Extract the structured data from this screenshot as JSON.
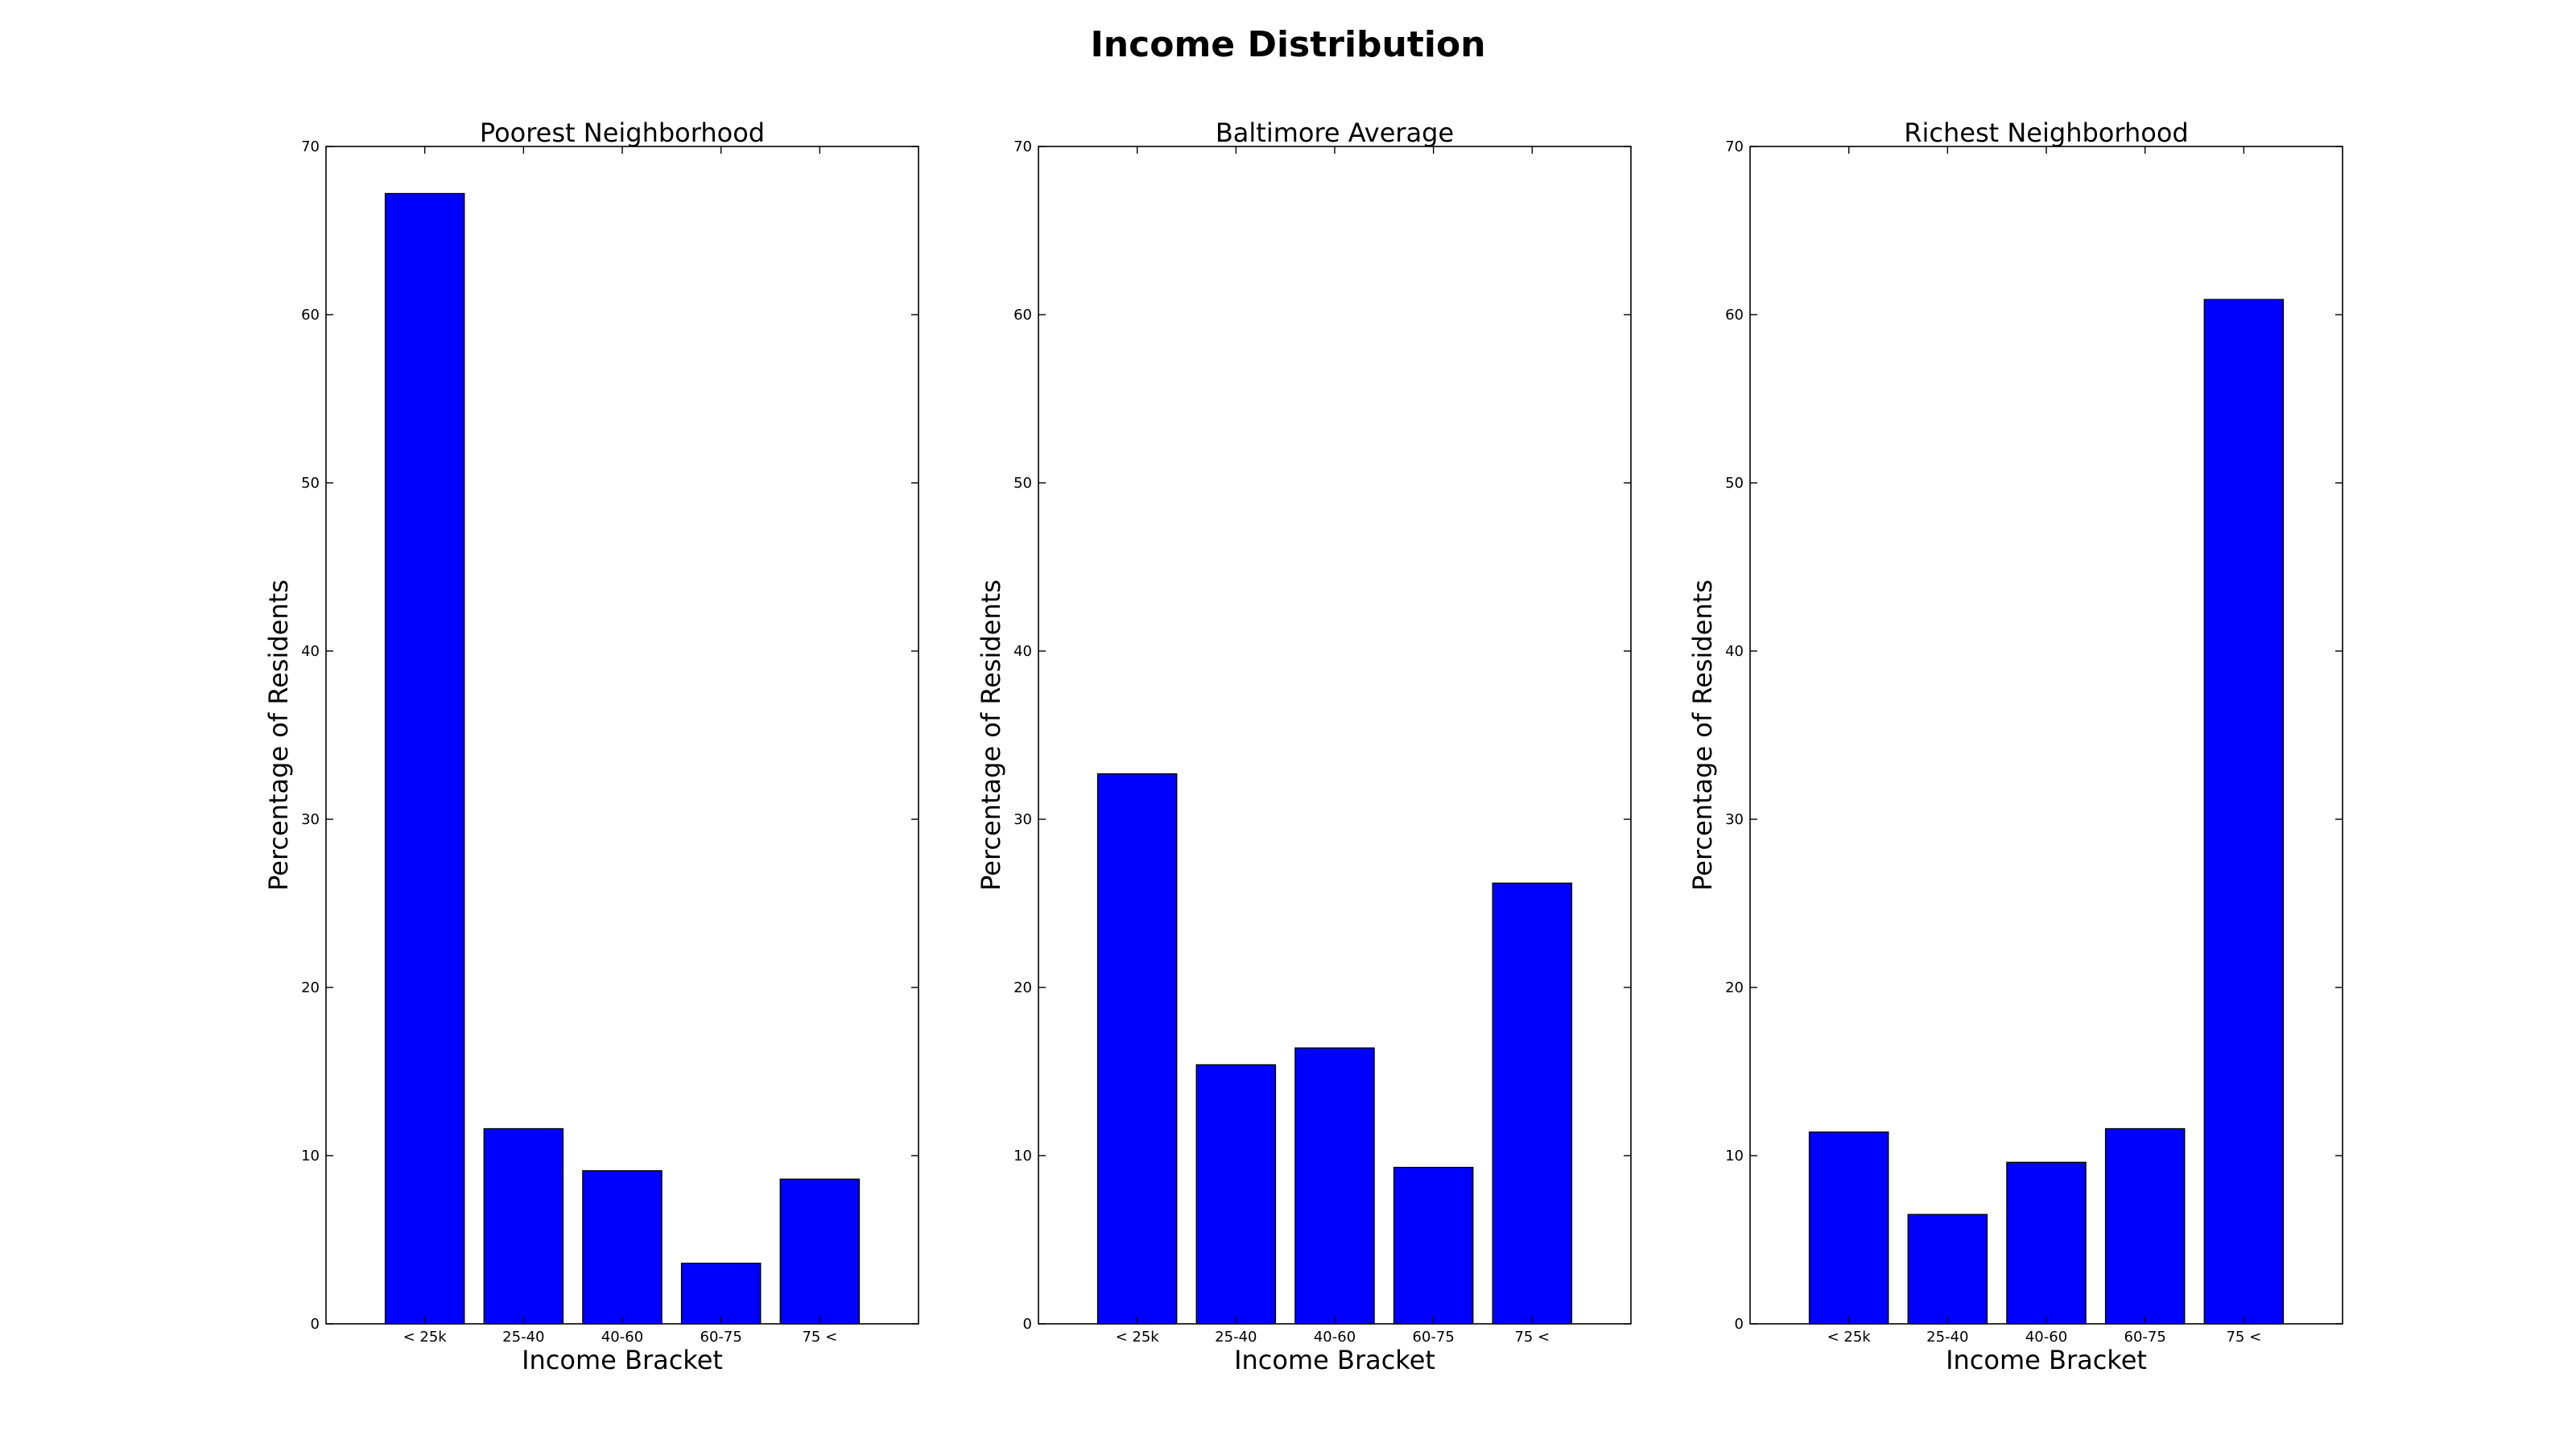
{
  "figure": {
    "title": "Income Distribution"
  },
  "chart_data": [
    {
      "type": "bar",
      "title": "Poorest Neighborhood",
      "xlabel": "Income Bracket",
      "ylabel": "Percentage of Residents",
      "categories": [
        "< 25k",
        "25-40",
        "40-60",
        "60-75",
        "75 <"
      ],
      "values": [
        67.2,
        11.6,
        9.1,
        3.6,
        8.6
      ],
      "ylim": [
        0,
        70
      ],
      "yticks": [
        0,
        10,
        20,
        30,
        40,
        50,
        60,
        70
      ],
      "bar_color": "#0000ff",
      "grid": false
    },
    {
      "type": "bar",
      "title": "Baltimore Average",
      "xlabel": "Income Bracket",
      "ylabel": "Percentage of Residents",
      "categories": [
        "< 25k",
        "25-40",
        "40-60",
        "60-75",
        "75 <"
      ],
      "values": [
        32.7,
        15.4,
        16.4,
        9.3,
        26.2
      ],
      "ylim": [
        0,
        70
      ],
      "yticks": [
        0,
        10,
        20,
        30,
        40,
        50,
        60,
        70
      ],
      "bar_color": "#0000ff",
      "grid": false
    },
    {
      "type": "bar",
      "title": "Richest Neighborhood",
      "xlabel": "Income Bracket",
      "ylabel": "Percentage of Residents",
      "categories": [
        "< 25k",
        "25-40",
        "40-60",
        "60-75",
        "75 <"
      ],
      "values": [
        11.4,
        6.5,
        9.6,
        11.6,
        60.9
      ],
      "ylim": [
        0,
        70
      ],
      "yticks": [
        0,
        10,
        20,
        30,
        40,
        50,
        60,
        70
      ],
      "bar_color": "#0000ff",
      "grid": false
    }
  ]
}
